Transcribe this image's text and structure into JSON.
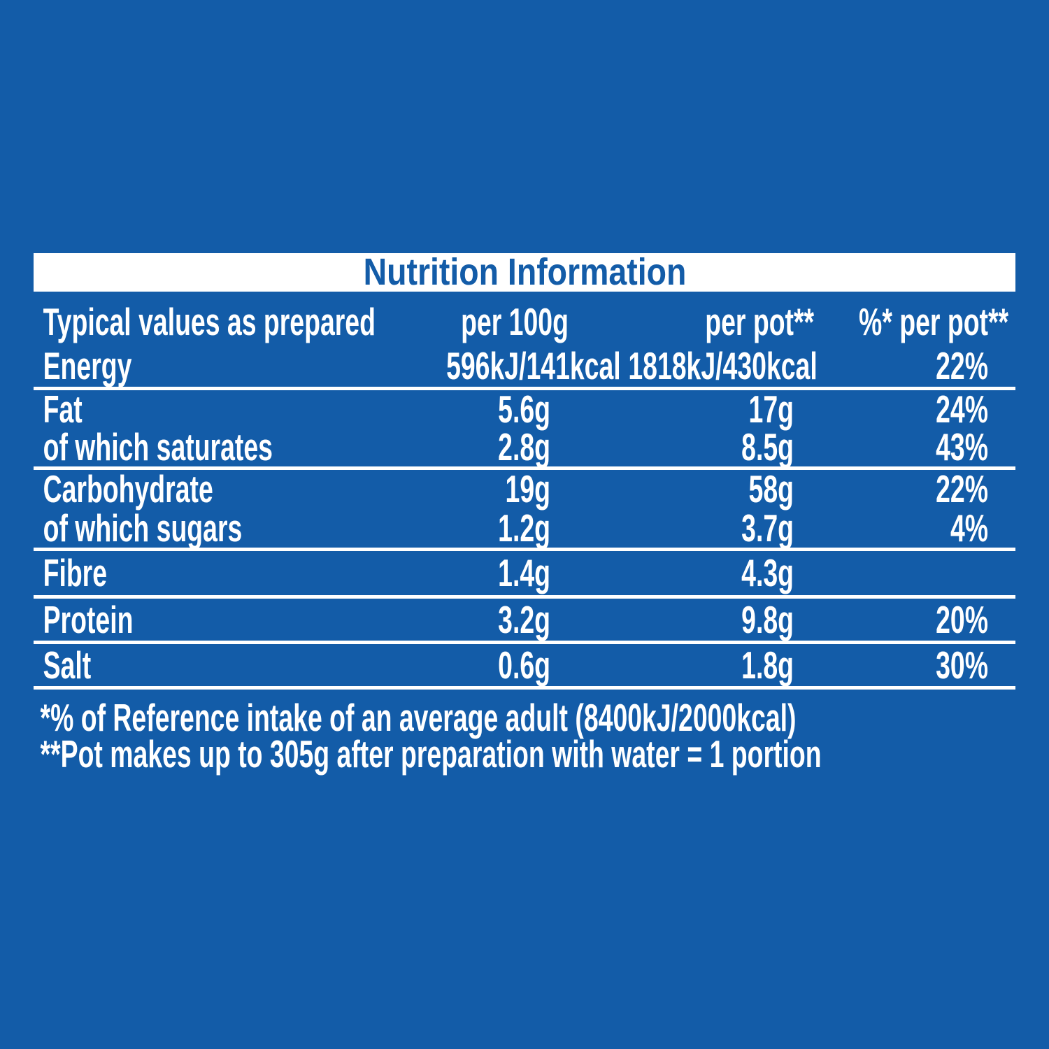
{
  "colors": {
    "background": "#135CA8",
    "table_text": "#FFFFFF",
    "title_text": "#135CA8",
    "title_band": "#FFFFFF"
  },
  "title": "Nutrition Information",
  "table": {
    "columns": {
      "label": "Typical values as prepared",
      "per_100g": "per 100g",
      "per_pot": {
        "text": "per pot",
        "marker": "**"
      },
      "pct_per_pot": {
        "text": "%* per pot",
        "marker": "**"
      }
    },
    "rows": [
      {
        "label": "Energy",
        "per_100g": "596kJ/141kcal",
        "per_pot": "1818kJ/430kcal",
        "pct": "22%"
      },
      {
        "label": "Fat",
        "per_100g": "5.6g",
        "per_pot": "17g",
        "pct": "24%"
      },
      {
        "label": "of which saturates",
        "per_100g": "2.8g",
        "per_pot": "8.5g",
        "pct": "43%"
      },
      {
        "label": "Carbohydrate",
        "per_100g": "19g",
        "per_pot": "58g",
        "pct": "22%"
      },
      {
        "label": "of which sugars",
        "per_100g": "1.2g",
        "per_pot": "3.7g",
        "pct": "4%"
      },
      {
        "label": "Fibre",
        "per_100g": "1.4g",
        "per_pot": "4.3g",
        "pct": ""
      },
      {
        "label": "Protein",
        "per_100g": "3.2g",
        "per_pot": "9.8g",
        "pct": "20%"
      },
      {
        "label": "Salt",
        "per_100g": "0.6g",
        "per_pot": "1.8g",
        "pct": "30%"
      }
    ]
  },
  "footnotes": [
    "*% of Reference intake of an average adult (8400kJ/2000kcal)",
    "**Pot makes up to 305g after preparation with water = 1 portion"
  ]
}
